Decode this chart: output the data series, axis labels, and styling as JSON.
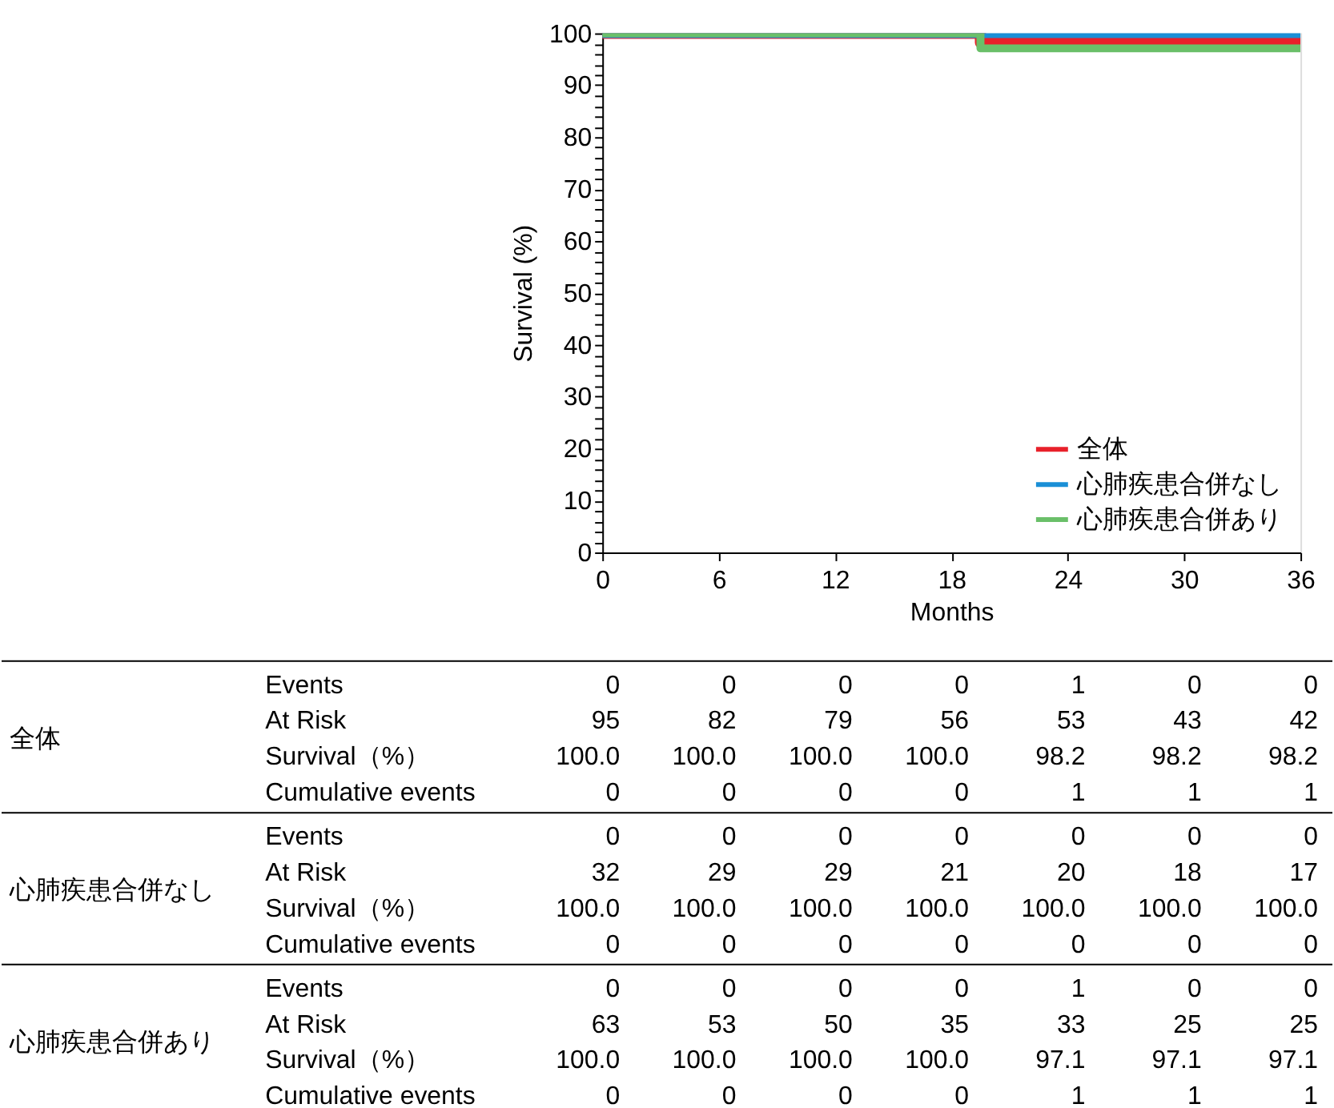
{
  "chart_data": [
    {
      "type": "step",
      "ylabel": "Survival (%)",
      "xlabel": "Months",
      "x": [
        0,
        19.5,
        36
      ],
      "series": [
        {
          "name": "全体",
          "color": "#e8202a",
          "values": [
            100,
            98.2,
            98.2
          ]
        },
        {
          "name": "心肺疾患合併なし",
          "color": "#1a8fd6",
          "values": [
            100,
            100,
            100
          ]
        },
        {
          "name": "心肺疾患合併あり",
          "color": "#6abf69",
          "values": [
            100,
            97.1,
            97.1
          ]
        }
      ],
      "xlim": [
        0,
        36
      ],
      "xticks": [
        0,
        6,
        12,
        18,
        24,
        30,
        36
      ],
      "ylim": [
        0,
        100
      ],
      "yticks": [
        0,
        {
          "value": 2,
          "label": null
        },
        {
          "value": 4,
          "label": null
        },
        {
          "value": 6,
          "label": null
        },
        {
          "value": 8,
          "label": null
        },
        10,
        {
          "value": 12,
          "label": null
        },
        {
          "value": 14,
          "label": null
        },
        {
          "value": 16,
          "label": null
        },
        {
          "value": 18,
          "label": null
        },
        20,
        {
          "value": 22,
          "label": null
        },
        {
          "value": 24,
          "label": null
        },
        {
          "value": 26,
          "label": null
        },
        {
          "value": 28,
          "label": null
        },
        30,
        {
          "value": 32,
          "label": null
        },
        {
          "value": 34,
          "label": null
        },
        {
          "value": 36,
          "label": null
        },
        {
          "value": 38,
          "label": null
        },
        40,
        {
          "value": 42,
          "label": null
        },
        {
          "value": 44,
          "label": null
        },
        {
          "value": 46,
          "label": null
        },
        {
          "value": 48,
          "label": null
        },
        50,
        {
          "value": 52,
          "label": null
        },
        {
          "value": 54,
          "label": null
        },
        {
          "value": 56,
          "label": null
        },
        {
          "value": 58,
          "label": null
        },
        60,
        {
          "value": 62,
          "label": null
        },
        {
          "value": 64,
          "label": null
        },
        {
          "value": 66,
          "label": null
        },
        {
          "value": 68,
          "label": null
        },
        70,
        {
          "value": 72,
          "label": null
        },
        {
          "value": 74,
          "label": null
        },
        {
          "value": 76,
          "label": null
        },
        {
          "value": 78,
          "label": null
        },
        80,
        {
          "value": 82,
          "label": null
        },
        {
          "value": 84,
          "label": null
        },
        {
          "value": 86,
          "label": null
        },
        {
          "value": 88,
          "label": null
        },
        90,
        {
          "value": 92,
          "label": null
        },
        {
          "value": 94,
          "label": null
        },
        {
          "value": 96,
          "label": null
        },
        {
          "value": 98,
          "label": null
        },
        100
      ],
      "grid": false,
      "legend": "bottom right",
      "marker": "none",
      "line_style": "solid"
    },
    {
      "type": "other",
      "annotations": [
        "全体",
        "Events",
        "0",
        "0",
        "0",
        "0",
        "1",
        "0",
        "0",
        "At Risk",
        "95",
        "82",
        "79",
        "56",
        "53",
        "43",
        "42",
        "Survival（%）",
        "100.0",
        "100.0",
        "100.0",
        "100.0",
        "98.2",
        "98.2",
        "98.2",
        "Cumulative events",
        "0",
        "0",
        "0",
        "0",
        "1",
        "1",
        "1",
        "心肺疾患合併なし",
        "Events",
        "0",
        "0",
        "0",
        "0",
        "0",
        "0",
        "0",
        "At Risk",
        "32",
        "29",
        "29",
        "21",
        "20",
        "18",
        "17",
        "Survival（%）",
        "100.0",
        "100.0",
        "100.0",
        "100.0",
        "100.0",
        "100.0",
        "100.0",
        "Cumulative events",
        "0",
        "0",
        "0",
        "0",
        "0",
        "0",
        "0",
        "心肺疾患合併あり",
        "Events",
        "0",
        "0",
        "0",
        "0",
        "1",
        "0",
        "0",
        "At Risk",
        "63",
        "53",
        "50",
        "35",
        "33",
        "25",
        "25",
        "Survival（%）",
        "100.0",
        "100.0",
        "100.0",
        "100.0",
        "97.1",
        "97.1",
        "97.1",
        "Cumulative events",
        "0",
        "0",
        "0",
        "0",
        "1",
        "1",
        "1"
      ]
    }
  ]
}
